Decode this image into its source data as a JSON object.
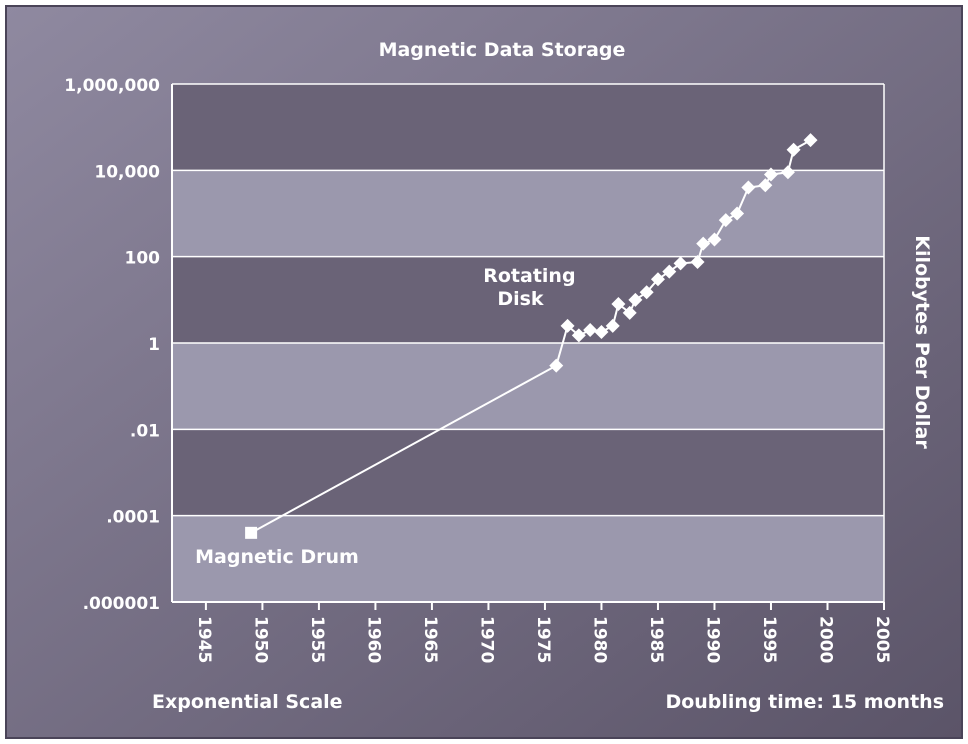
{
  "chart_data": {
    "type": "line",
    "title": "Magnetic Data Storage",
    "ylabel": "Kilobytes Per Dollar",
    "xlabel": "",
    "yscale": "log",
    "xlim": [
      1942,
      2005
    ],
    "ylim": [
      1e-06,
      1000000
    ],
    "y_ticks": [
      {
        "value": 1000000,
        "label": "1,000,000"
      },
      {
        "value": 10000,
        "label": "10,000"
      },
      {
        "value": 100,
        "label": "100"
      },
      {
        "value": 1,
        "label": "1"
      },
      {
        "value": 0.01,
        "label": ".01"
      },
      {
        "value": 0.0001,
        "label": ".0001"
      },
      {
        "value": 1e-06,
        "label": ".000001"
      }
    ],
    "x_ticks": [
      {
        "value": 1945,
        "label": "1945"
      },
      {
        "value": 1950,
        "label": "1950"
      },
      {
        "value": 1955,
        "label": "1955"
      },
      {
        "value": 1960,
        "label": "1960"
      },
      {
        "value": 1965,
        "label": "1965"
      },
      {
        "value": 1970,
        "label": "1970"
      },
      {
        "value": 1975,
        "label": "1975"
      },
      {
        "value": 1980,
        "label": "1980"
      },
      {
        "value": 1985,
        "label": "1985"
      },
      {
        "value": 1990,
        "label": "1990"
      },
      {
        "value": 1995,
        "label": "1995"
      },
      {
        "value": 2000,
        "label": "2000"
      },
      {
        "value": 2005,
        "label": "2005"
      }
    ],
    "series": [
      {
        "name": "",
        "points": [
          {
            "x": 1949,
            "y": 4e-05
          },
          {
            "x": 1976,
            "y": 0.3
          },
          {
            "x": 1977,
            "y": 2.5
          },
          {
            "x": 1978,
            "y": 1.5
          },
          {
            "x": 1979,
            "y": 2
          },
          {
            "x": 1980,
            "y": 1.8
          },
          {
            "x": 1981,
            "y": 2.5
          },
          {
            "x": 1981.5,
            "y": 8
          },
          {
            "x": 1982.5,
            "y": 5
          },
          {
            "x": 1983,
            "y": 10
          },
          {
            "x": 1984,
            "y": 15
          },
          {
            "x": 1985,
            "y": 30
          },
          {
            "x": 1986,
            "y": 45
          },
          {
            "x": 1987,
            "y": 70
          },
          {
            "x": 1988.5,
            "y": 75
          },
          {
            "x": 1989,
            "y": 200
          },
          {
            "x": 1990,
            "y": 250
          },
          {
            "x": 1991,
            "y": 700
          },
          {
            "x": 1992,
            "y": 1000
          },
          {
            "x": 1993,
            "y": 4000
          },
          {
            "x": 1994.5,
            "y": 4500
          },
          {
            "x": 1995,
            "y": 8000
          },
          {
            "x": 1996.5,
            "y": 9000
          },
          {
            "x": 1997,
            "y": 30000
          },
          {
            "x": 1998.5,
            "y": 50000
          }
        ]
      }
    ],
    "annotations": [
      {
        "text": "Magnetic Drum",
        "x": 1949,
        "y": 4e-05
      },
      {
        "text": "Rotating\nDisk",
        "x": 1977,
        "y": 2.5
      }
    ],
    "grid": true,
    "bottom_left_caption": "Exponential Scale",
    "bottom_right_caption": "Doubling time: 15 months"
  },
  "colors": {
    "background_light": "#8a8399",
    "background_dark": "#5d566c",
    "band_light": "#9b98ad",
    "band_dark": "#6a6377",
    "text": "#ffffff"
  }
}
